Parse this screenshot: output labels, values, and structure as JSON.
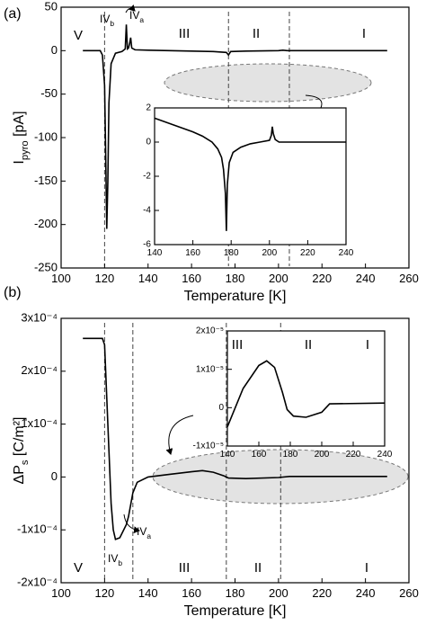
{
  "chart_data": [
    {
      "type": "line",
      "panel_label": "(a)",
      "x_label": "Temperature [K]",
      "y_label": {
        "main": "I",
        "sub": "pyro",
        "unit": " [pA]"
      },
      "x": [
        110,
        118,
        119,
        120,
        120.5,
        121,
        121.5,
        122,
        123,
        125,
        128,
        129.5,
        130,
        130.5,
        131,
        131.5,
        132,
        132.5,
        134,
        140,
        150,
        160,
        170,
        176,
        177,
        178,
        185,
        200,
        202,
        204,
        210,
        250
      ],
      "values": [
        0,
        0,
        -5,
        -40,
        -120,
        -205,
        -150,
        -60,
        -15,
        -3,
        -1,
        2,
        30,
        2,
        3,
        8,
        15,
        3,
        1,
        0.5,
        0,
        -0.5,
        -1,
        -2,
        -5,
        -1,
        -0.5,
        0,
        0.5,
        0,
        0,
        0
      ],
      "color": "#000000",
      "xlim": [
        100,
        260
      ],
      "xticks": [
        100,
        120,
        140,
        160,
        180,
        200,
        220,
        240,
        260
      ],
      "ylim": [
        -250,
        50
      ],
      "yticks": [
        -250,
        -200,
        -150,
        -100,
        -50,
        0,
        50
      ],
      "vlines": [
        120,
        177,
        205
      ],
      "annotations": [
        {
          "text": "V"
        },
        {
          "text": "IV",
          "sub": "b"
        },
        {
          "text": "IV",
          "sub": "a"
        },
        {
          "text": "III"
        },
        {
          "text": "II"
        },
        {
          "text": "I"
        }
      ]
    },
    {
      "type": "line",
      "x": [
        140,
        150,
        160,
        165,
        170,
        173,
        175,
        176,
        177,
        177.5,
        178,
        179,
        181,
        185,
        190,
        195,
        200,
        201,
        201.5,
        202,
        203,
        205,
        240
      ],
      "values": [
        1.4,
        1.0,
        0.6,
        0.35,
        0.0,
        -0.4,
        -0.9,
        -1.6,
        -3,
        -5.2,
        -2.5,
        -1.2,
        -0.6,
        -0.3,
        -0.1,
        0,
        0.1,
        0.4,
        0.9,
        0.5,
        0.15,
        0,
        0
      ],
      "color": "#000000",
      "xlim": [
        140,
        240
      ],
      "xticks": [
        140,
        160,
        180,
        200,
        220,
        240
      ],
      "ylim": [
        -6,
        2
      ],
      "yticks": [
        -6,
        -4,
        -2,
        0,
        2
      ]
    },
    {
      "type": "line",
      "panel_label": "(b)",
      "x_label": "Temperature [K]",
      "y_label": {
        "main": "ΔP",
        "sub": "s",
        "unit": " [C/m²]"
      },
      "x": [
        110,
        119,
        120,
        121,
        122,
        123,
        124,
        125,
        127,
        130,
        131,
        133,
        135,
        140,
        150,
        160,
        165,
        170,
        175,
        177,
        185,
        200,
        205,
        250
      ],
      "values": [
        0.000262,
        0.000262,
        0.00025,
        0.00015,
        5e-05,
        -5e-05,
        -0.0001,
        -0.000118,
        -0.000115,
        -9e-05,
        -7.5e-05,
        -3e-05,
        -1e-05,
        0,
        5e-06,
        1e-05,
        1.2e-05,
        9e-06,
        2e-06,
        -2e-06,
        -3e-06,
        -1e-06,
        1e-06,
        1e-06
      ],
      "color": "#000000",
      "xlim": [
        100,
        260
      ],
      "xticks": [
        100,
        120,
        140,
        160,
        180,
        200,
        220,
        240,
        260
      ],
      "ylim": [
        -0.0002,
        0.0003
      ],
      "yticks": [
        {
          "value": -0.0002,
          "label": "-2x10⁻⁴"
        },
        {
          "value": -0.0001,
          "label": "-1x10⁻⁴"
        },
        0,
        {
          "value": 0.0001,
          "label": "1x10⁻⁴"
        },
        {
          "value": 0.0002,
          "label": "2x10⁻⁴"
        },
        {
          "value": 0.0003,
          "label": "3x10⁻⁴"
        }
      ],
      "vlines": [
        120,
        133,
        176,
        201
      ],
      "annotations": [
        {
          "text": "V"
        },
        {
          "text": "IV",
          "sub": "b"
        },
        {
          "text": "IV",
          "sub": "a"
        },
        {
          "text": "III"
        },
        {
          "text": "II"
        },
        {
          "text": "I"
        }
      ]
    },
    {
      "type": "line",
      "x": [
        140,
        150,
        160,
        165,
        170,
        175,
        178,
        182,
        190,
        200,
        205,
        240
      ],
      "values": [
        -5e-06,
        5e-06,
        1.1e-05,
        1.22e-05,
        1.05e-05,
        4e-06,
        -5e-07,
        -2.2e-06,
        -2.5e-06,
        -1.2e-06,
        1e-06,
        1.2e-06
      ],
      "color": "#000000",
      "xlim": [
        140,
        240
      ],
      "xticks": [
        140,
        160,
        180,
        200,
        220,
        240
      ],
      "ylim": [
        -1e-05,
        2e-05
      ],
      "yticks": [
        {
          "value": -1e-05,
          "label": "-1x10⁻⁵"
        },
        0,
        {
          "value": 1e-05,
          "label": "1x10⁻⁵"
        },
        {
          "value": 2e-05,
          "label": "2x10⁻⁵"
        }
      ],
      "annotations": [
        {
          "text": "III"
        },
        {
          "text": "II"
        },
        {
          "text": "I"
        }
      ]
    }
  ]
}
